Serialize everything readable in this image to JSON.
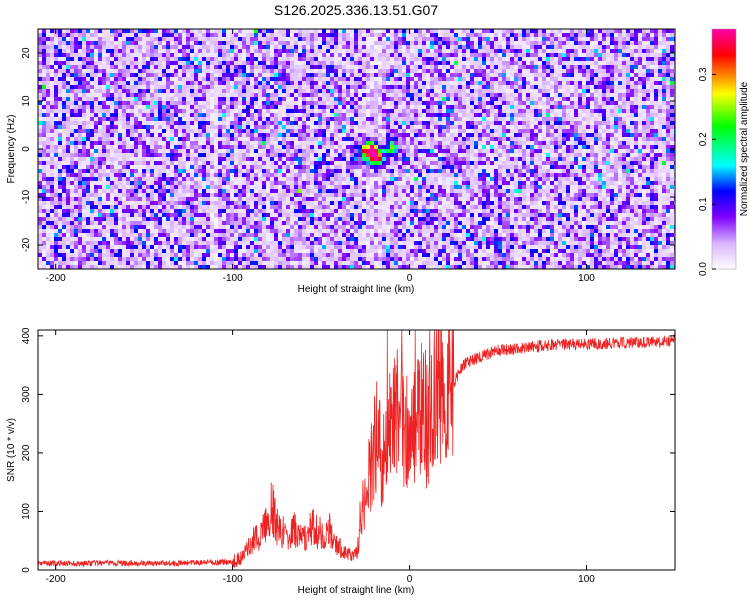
{
  "title": "S126.2025.336.13.51.G07",
  "chart_data": [
    {
      "type": "heatmap",
      "xlabel": "Height of straight line (km)",
      "ylabel": "Frequency (Hz)",
      "xlim": [
        -210,
        150
      ],
      "ylim": [
        -25,
        25
      ],
      "x_ticks": [
        -200,
        -100,
        0,
        100
      ],
      "y_ticks": [
        -20,
        -10,
        0,
        10,
        20
      ],
      "colorbar": {
        "label": "Normalized spectral amplitude",
        "range": [
          0,
          0.37
        ],
        "ticks": [
          0.0,
          0.1,
          0.2,
          0.3
        ],
        "colors": [
          "#ffffff",
          "#d9b3ff",
          "#8000ff",
          "#0000ff",
          "#00ffff",
          "#00ff00",
          "#ffff00",
          "#ff0000",
          "#ff00aa"
        ]
      },
      "background_level": 0.05,
      "peak": {
        "x": -20,
        "y": -1,
        "value": 0.36
      },
      "hot_spots": [
        {
          "x": -22,
          "y": 0,
          "value": 0.25
        },
        {
          "x": -18,
          "y": -2,
          "value": 0.3
        },
        {
          "x": -10,
          "y": 0,
          "value": 0.2
        },
        {
          "x": -25,
          "y": -1,
          "value": 0.18
        }
      ],
      "grid": false
    },
    {
      "type": "line",
      "xlabel": "Height of straight line (km)",
      "ylabel": "SNR (10 * v/v)",
      "xlim": [
        -210,
        150
      ],
      "ylim": [
        0,
        410
      ],
      "x_ticks": [
        -200,
        -100,
        0,
        100
      ],
      "y_ticks": [
        0,
        100,
        200,
        300,
        400
      ],
      "series": [
        {
          "color": "#ee2222",
          "x": [
            -210,
            -190,
            -170,
            -150,
            -130,
            -110,
            -100,
            -95,
            -90,
            -85,
            -80,
            -78,
            -75,
            -70,
            -65,
            -60,
            -55,
            -50,
            -45,
            -40,
            -35,
            -30,
            -27,
            -25,
            -22,
            -20,
            -18,
            -15,
            -12,
            -10,
            -5,
            0,
            5,
            10,
            15,
            20,
            25,
            30,
            40,
            50,
            60,
            70,
            80,
            90,
            100,
            110,
            120,
            130,
            140,
            150
          ],
          "y": [
            12,
            11,
            12,
            11,
            12,
            13,
            14,
            20,
            45,
            60,
            80,
            110,
            75,
            60,
            70,
            50,
            75,
            55,
            65,
            40,
            25,
            30,
            80,
            140,
            180,
            220,
            230,
            180,
            220,
            250,
            270,
            210,
            280,
            250,
            300,
            300,
            320,
            350,
            365,
            375,
            378,
            382,
            385,
            385,
            385,
            387,
            388,
            388,
            390,
            392
          ]
        }
      ],
      "grid": false
    }
  ]
}
